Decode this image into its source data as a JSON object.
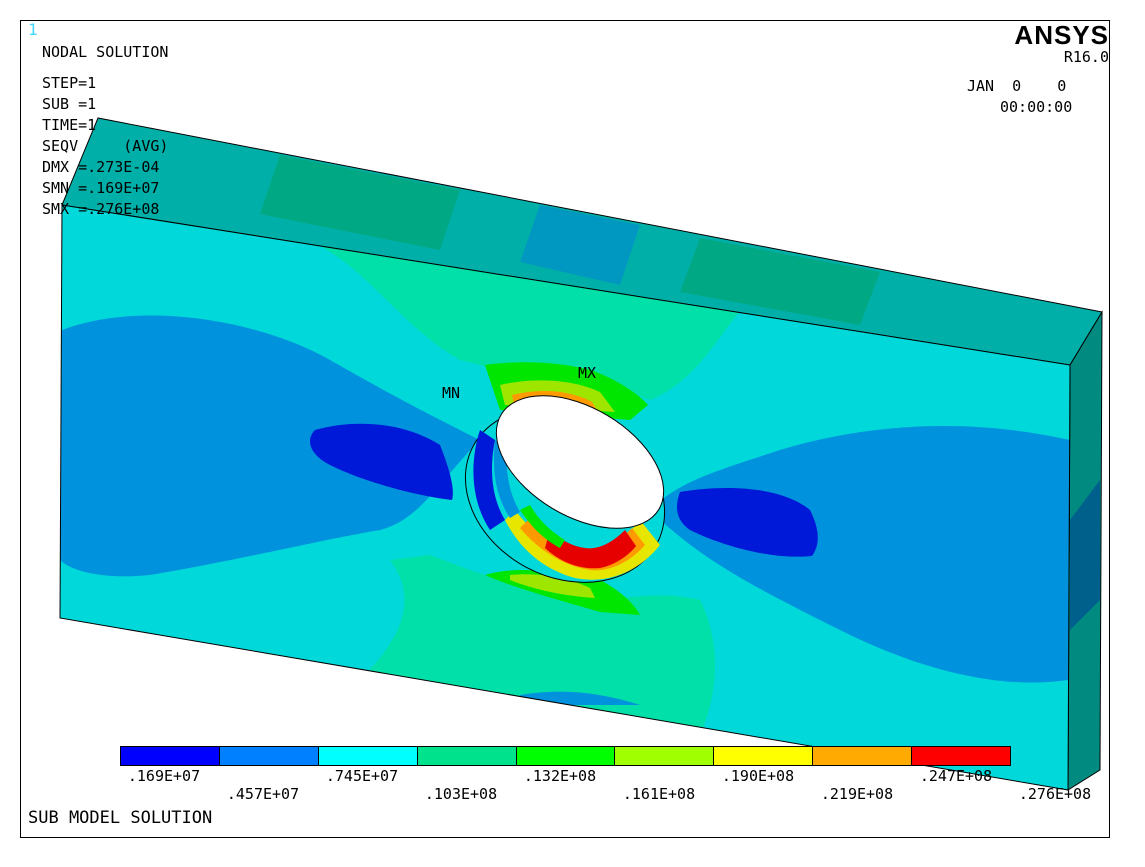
{
  "window_number": "1",
  "brand": "ANSYS",
  "release": "R16.0",
  "header": {
    "title": "NODAL SOLUTION",
    "step": "STEP=1",
    "sub": "SUB =1",
    "time": "TIME=1",
    "seqv": "SEQV     (AVG)",
    "dmx": "DMX =.273E-04",
    "smn": "SMN =.169E+07",
    "smx": "SMX =.276E+08"
  },
  "date": "JAN  0    0",
  "time_of_day": "00:00:00",
  "markers": {
    "min": "MN",
    "max": "MX"
  },
  "footer_title": "SUB MODEL SOLUTION",
  "legend": {
    "colors": [
      "#0000ff",
      "#0080ff",
      "#00ffff",
      "#00e38c",
      "#00ff00",
      "#a0ff00",
      "#ffff00",
      "#ffaa00",
      "#ff0000"
    ],
    "upper_labels": [
      ".169E+07",
      ".745E+07",
      ".132E+08",
      ".190E+08",
      ".247E+08"
    ],
    "lower_labels": [
      ".457E+07",
      ".103E+08",
      ".161E+08",
      ".219E+08",
      ".276E+08"
    ]
  },
  "contour_colors": {
    "blue": "#0018d8",
    "medium_blue": "#0092dc",
    "cyan": "#00d8da",
    "teal": "#00e0a8",
    "green": "#00e600",
    "yellow_green": "#9ee600",
    "yellow": "#e6e600",
    "orange": "#ff9a00",
    "red": "#e60000",
    "side_face": "#008a80",
    "top_face": "#00b0a8"
  }
}
